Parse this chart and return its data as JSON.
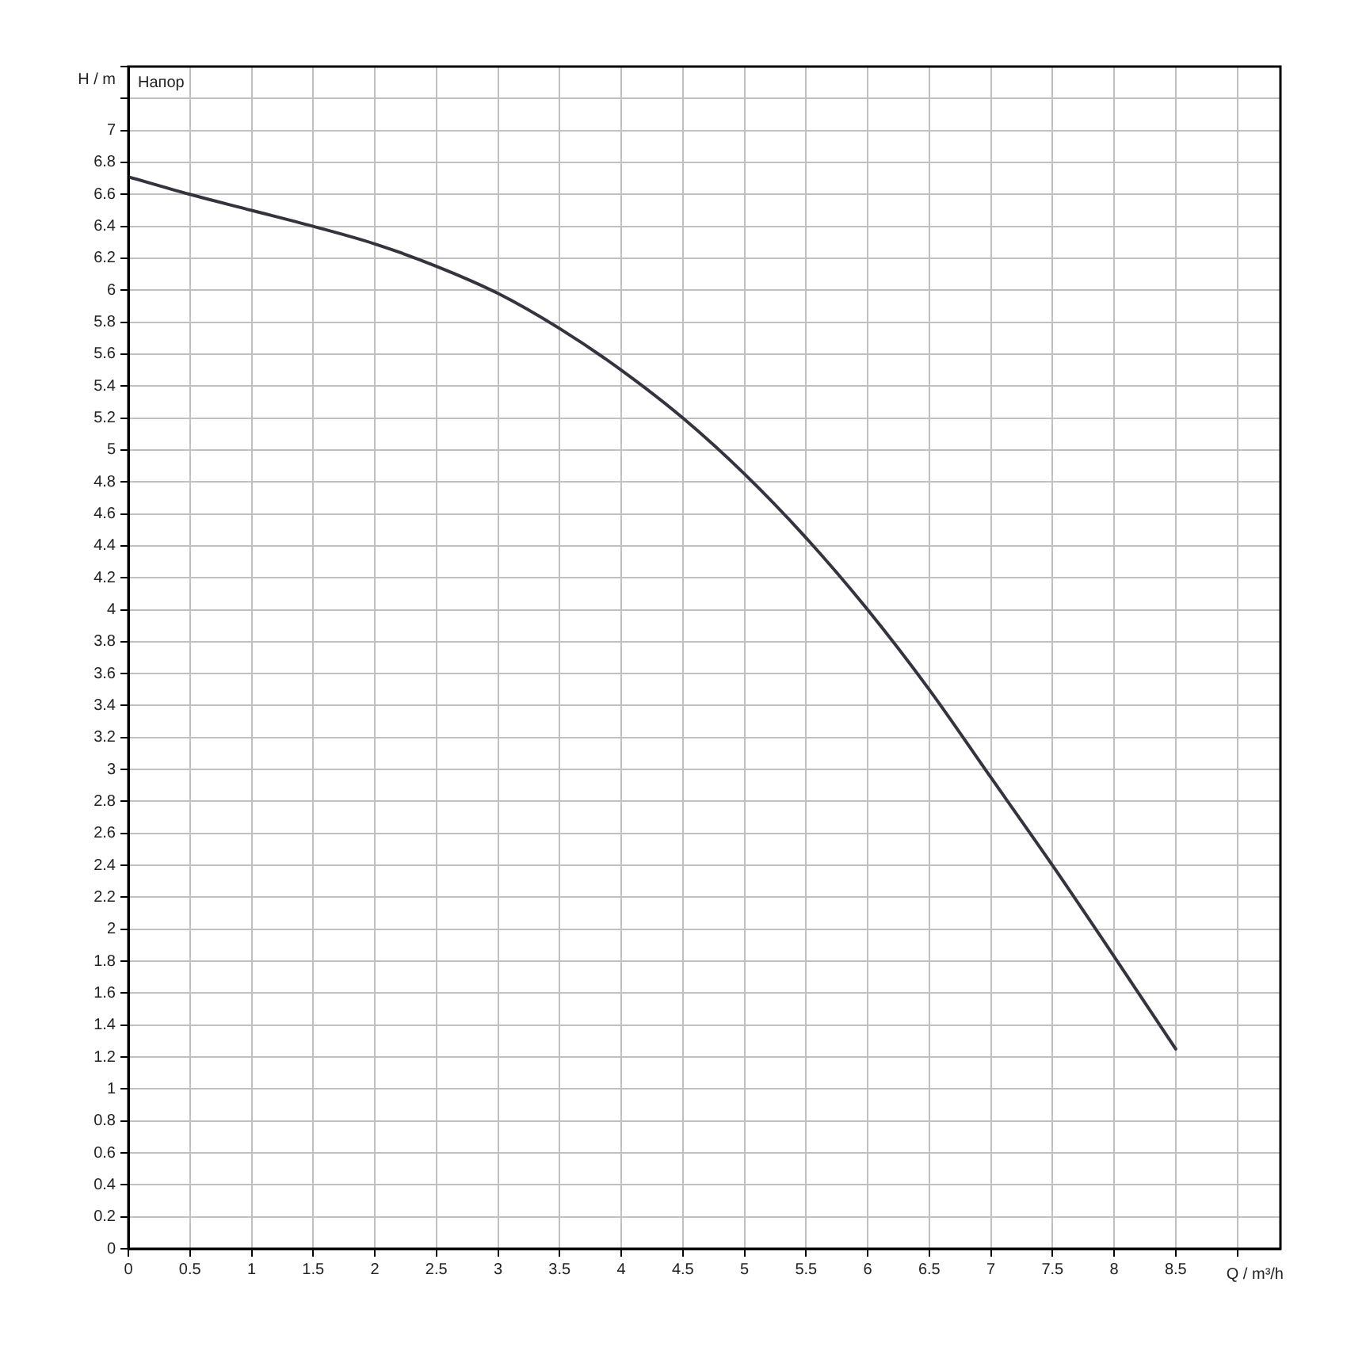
{
  "chart_data": {
    "type": "line",
    "xlabel": "Q / m³/h",
    "ylabel": "H / m",
    "annotations": [
      "Напор"
    ],
    "x": [
      0,
      0.5,
      1,
      1.5,
      2,
      2.5,
      3,
      3.5,
      4,
      4.5,
      5,
      5.5,
      6,
      6.5,
      7,
      7.5,
      8,
      8.5
    ],
    "series": [
      {
        "color": "#34343f",
        "values": [
          6.71,
          6.6,
          6.5,
          6.4,
          6.29,
          6.15,
          5.98,
          5.76,
          5.5,
          5.2,
          4.85,
          4.45,
          4.0,
          3.5,
          2.95,
          2.4,
          1.83,
          1.25
        ]
      }
    ],
    "xlim": [
      0,
      9.35
    ],
    "xticks": [
      0,
      0.5,
      1,
      1.5,
      2,
      2.5,
      3,
      3.5,
      4,
      4.5,
      5,
      5.5,
      6,
      6.5,
      7,
      7.5,
      8,
      8.5,
      {
        "value": 9,
        "label": null
      }
    ],
    "ylim": [
      0,
      7.4
    ],
    "yticks": [
      0,
      0.2,
      0.4,
      0.6,
      0.8,
      1,
      1.2,
      1.4,
      1.6,
      1.8,
      2,
      2.2,
      2.4,
      2.6,
      2.8,
      3,
      3.2,
      3.4,
      3.6,
      3.8,
      4,
      4.2,
      4.4,
      4.6,
      4.8,
      5,
      5.2,
      5.4,
      5.6,
      5.8,
      6,
      6.2,
      6.4,
      6.6,
      6.8,
      7,
      {
        "value": 7.2,
        "label": null
      },
      {
        "value": 7.4,
        "label": null
      }
    ],
    "grid": true,
    "marker": "none",
    "line_style": "solid",
    "legend": false
  }
}
